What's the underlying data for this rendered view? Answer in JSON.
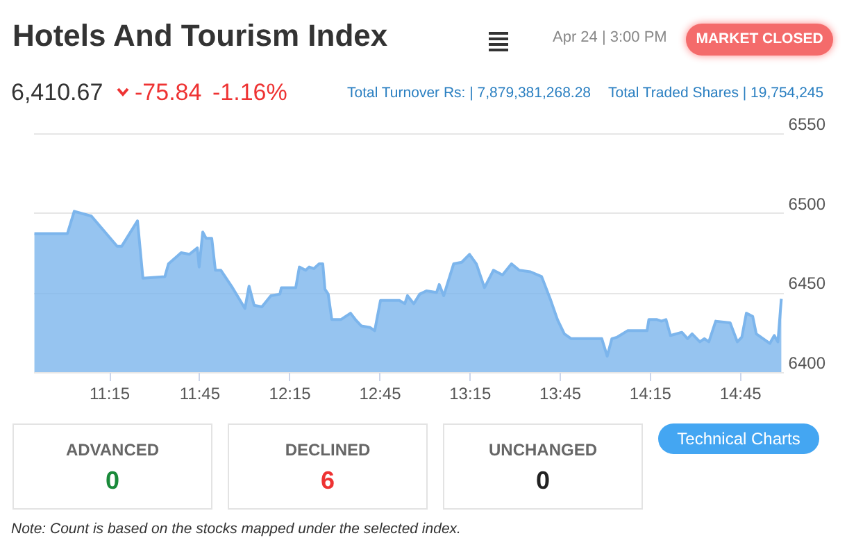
{
  "chart_data": {
    "type": "area",
    "title": "Hotels And Tourism Index",
    "annotations": [
      "Apr 24 | 3:00 PM",
      "MARKET CLOSED",
      "6,410.67",
      "-75.84",
      "-1.16%",
      "Total Turnover Rs: | 7,879,381,268.28",
      "Total Traded Shares | 19,754,245",
      "ADVANCED",
      "0",
      "DECLINED",
      "6",
      "UNCHANGED",
      "0",
      "Technical Charts",
      "Note: Count is based on the stocks mapped under the selected index."
    ],
    "x": [
      10.836,
      11.019,
      11.057,
      11.152,
      11.295,
      11.32,
      11.408,
      11.438,
      11.56,
      11.58,
      11.65,
      11.696,
      11.74,
      11.75,
      11.77,
      11.789,
      11.82,
      11.84,
      11.87,
      11.935,
      12.004,
      12.027,
      12.055,
      12.098,
      12.148,
      12.198,
      12.206,
      12.286,
      12.306,
      12.341,
      12.36,
      12.386,
      12.416,
      12.436,
      12.448,
      12.466,
      12.486,
      12.536,
      12.59,
      12.617,
      12.65,
      12.699,
      12.724,
      12.756,
      12.861,
      12.891,
      12.906,
      12.941,
      12.974,
      13.011,
      13.067,
      13.082,
      13.107,
      13.162,
      13.207,
      13.25,
      13.288,
      13.333,
      13.383,
      13.433,
      13.483,
      13.526,
      13.588,
      13.65,
      13.701,
      13.738,
      13.776,
      13.814,
      13.984,
      14.014,
      14.04,
      14.07,
      14.127,
      14.235,
      14.245,
      14.29,
      14.315,
      14.34,
      14.365,
      14.428,
      14.46,
      14.485,
      14.528,
      14.553,
      14.578,
      14.616,
      14.696,
      14.736,
      14.761,
      14.786,
      14.821,
      14.841,
      14.879,
      14.916,
      14.941,
      14.961,
      14.98
    ],
    "series": [
      {
        "color": "#7cb5ec",
        "values": [
          6487,
          6487,
          6501,
          6498,
          6479,
          6479,
          6495,
          6459,
          6460,
          6468,
          6475,
          6474,
          6478,
          6466,
          6488,
          6484,
          6484,
          6464,
          6464,
          6453,
          6440,
          6454,
          6442,
          6441,
          6448,
          6449,
          6453,
          6453,
          6466,
          6464,
          6466,
          6465,
          6468,
          6468,
          6452,
          6449,
          6433,
          6433,
          6437,
          6433,
          6429,
          6428,
          6426,
          6445,
          6445,
          6443,
          6448,
          6443,
          6449,
          6451,
          6450,
          6455,
          6448,
          6468,
          6469,
          6474,
          6468,
          6453,
          6464,
          6461,
          6468,
          6464,
          6463,
          6460,
          6445,
          6433,
          6424,
          6421,
          6421,
          6410,
          6421,
          6422,
          6426,
          6426,
          6433,
          6433,
          6432,
          6433,
          6423,
          6425,
          6421,
          6424,
          6419,
          6421,
          6419,
          6432,
          6431,
          6419,
          6422,
          6437,
          6435,
          6424,
          6421,
          6418,
          6423,
          6419,
          6446
        ]
      }
    ],
    "xlim": [
      10.83,
      14.99
    ],
    "xticks": [
      {
        "value": 11.25,
        "label": "11:15"
      },
      {
        "value": 11.75,
        "label": "11:45"
      },
      {
        "value": 12.25,
        "label": "12:15"
      },
      {
        "value": 12.75,
        "label": "12:45"
      },
      {
        "value": 13.25,
        "label": "13:15"
      },
      {
        "value": 13.75,
        "label": "13:45"
      },
      {
        "value": 14.25,
        "label": "14:15"
      },
      {
        "value": 14.75,
        "label": "14:45"
      }
    ],
    "ylim": [
      6400,
      6550
    ],
    "yticks": [
      6400,
      6450,
      6500,
      6550
    ],
    "grid": "y"
  }
}
